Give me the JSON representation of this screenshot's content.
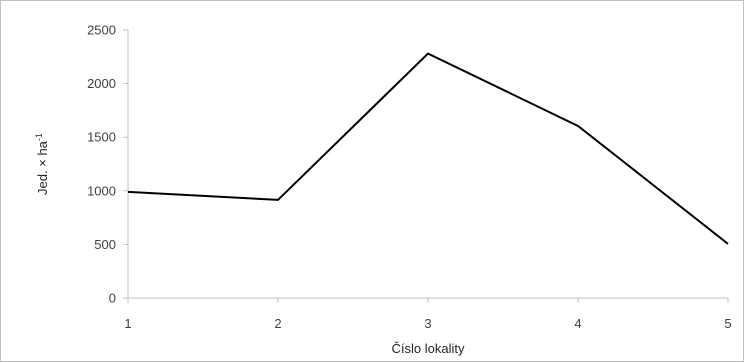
{
  "chart_data": {
    "type": "line",
    "x": [
      1,
      2,
      3,
      4,
      5
    ],
    "y": [
      990,
      915,
      2280,
      1605,
      505
    ],
    "xlabel": "Číslo lokality",
    "ylabel": {
      "base": "Jed. × ha",
      "sup": "-1"
    },
    "ylim": [
      0,
      2500
    ],
    "xlim": [
      1,
      5
    ],
    "yticks": [
      "0",
      "500",
      "1000",
      "1500",
      "2000",
      "2500"
    ],
    "xticks": [
      "1",
      "2",
      "3",
      "4",
      "5"
    ],
    "grid": false,
    "line_color": "#000000"
  }
}
